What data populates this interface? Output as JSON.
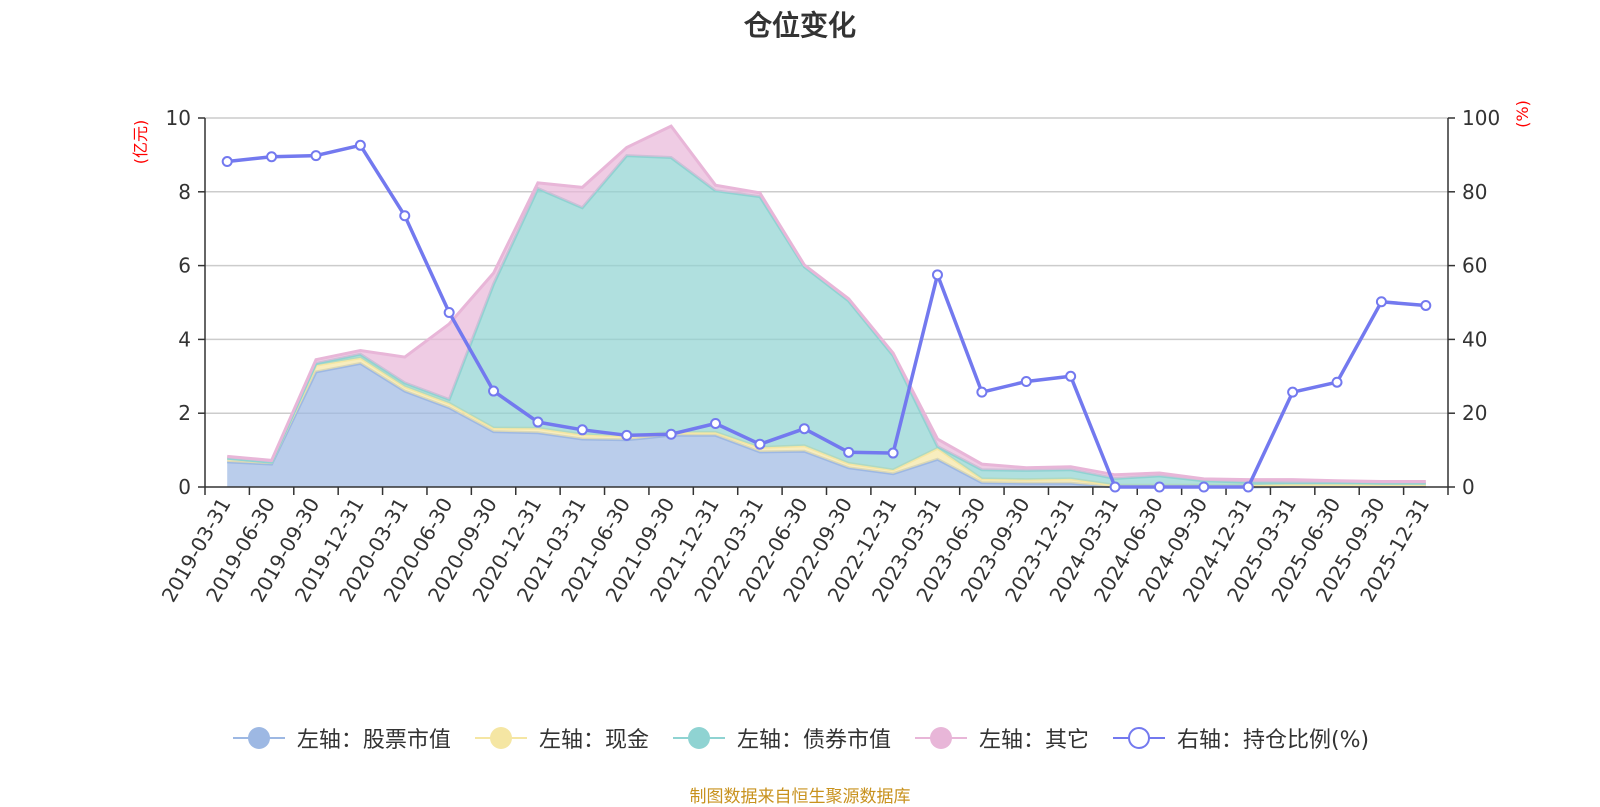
{
  "chart_data": {
    "type": "area",
    "title": "仓位变化",
    "source": "制图数据来自恒生聚源数据库",
    "left_axis": {
      "unit": "(亿元)",
      "ylim": [
        0,
        10
      ],
      "ticks": [
        "0",
        "2",
        "4",
        "6",
        "8",
        "10"
      ]
    },
    "right_axis": {
      "unit": "(%)",
      "ylim": [
        0,
        100
      ],
      "ticks": [
        "0",
        "20",
        "40",
        "60",
        "80",
        "100"
      ]
    },
    "categories": [
      "2019-03-31",
      "2019-06-30",
      "2019-09-30",
      "2019-12-31",
      "2020-03-31",
      "2020-06-30",
      "2020-09-30",
      "2020-12-31",
      "2021-03-31",
      "2021-06-30",
      "2021-09-30",
      "2021-12-31",
      "2022-03-31",
      "2022-06-30",
      "2022-09-30",
      "2022-12-31",
      "2023-03-31",
      "2023-06-30",
      "2023-09-30",
      "2023-12-31",
      "2024-03-31",
      "2024-06-30",
      "2024-09-30",
      "2024-12-31",
      "2025-03-31",
      "2025-06-30",
      "2025-09-30",
      "2025-12-31"
    ],
    "series": [
      {
        "name": "左轴：股票市值",
        "axis": "left",
        "kind": "stack",
        "color": "#9db8e3",
        "values": [
          0.68,
          0.62,
          3.12,
          3.35,
          2.6,
          2.15,
          1.5,
          1.47,
          1.3,
          1.28,
          1.4,
          1.4,
          0.95,
          0.97,
          0.52,
          0.36,
          0.75,
          0.12,
          0.1,
          0.1,
          0.0,
          0.0,
          0.0,
          0.0,
          0.02,
          0.02,
          0.02,
          0.02
        ]
      },
      {
        "name": "左轴：现金",
        "axis": "left",
        "kind": "stack",
        "color": "#f5e6a3",
        "values": [
          0.1,
          0.05,
          0.18,
          0.15,
          0.12,
          0.12,
          0.1,
          0.12,
          0.12,
          0.1,
          0.08,
          0.08,
          0.12,
          0.15,
          0.12,
          0.1,
          0.3,
          0.1,
          0.1,
          0.12,
          0.05,
          0.05,
          0.05,
          0.05,
          0.05,
          0.05,
          0.05,
          0.05
        ]
      },
      {
        "name": "左轴：债券市值",
        "axis": "left",
        "kind": "stack",
        "color": "#8fd3d2",
        "values": [
          0.0,
          0.0,
          0.05,
          0.1,
          0.1,
          0.1,
          3.9,
          6.5,
          6.15,
          7.6,
          7.45,
          6.55,
          6.8,
          4.85,
          4.4,
          3.1,
          0.05,
          0.25,
          0.25,
          0.25,
          0.18,
          0.25,
          0.12,
          0.08,
          0.05,
          0.05,
          0.03,
          0.03
        ]
      },
      {
        "name": "左轴：其它",
        "axis": "left",
        "kind": "stack",
        "color": "#e8b6d8",
        "values": [
          0.05,
          0.05,
          0.1,
          0.1,
          0.7,
          2.05,
          0.3,
          0.15,
          0.55,
          0.22,
          0.85,
          0.15,
          0.1,
          0.05,
          0.06,
          0.07,
          0.2,
          0.15,
          0.07,
          0.08,
          0.1,
          0.08,
          0.05,
          0.07,
          0.08,
          0.05,
          0.05,
          0.05
        ]
      },
      {
        "name": "右轴：持仓比例(%)",
        "axis": "right",
        "kind": "line",
        "color": "#7379ef",
        "values": [
          88.2,
          89.5,
          89.8,
          92.6,
          73.5,
          47.3,
          26.0,
          17.6,
          15.5,
          14.0,
          14.3,
          17.2,
          11.6,
          15.8,
          9.4,
          9.2,
          57.5,
          25.7,
          28.6,
          30.0,
          0.0,
          0.0,
          0.0,
          0.0,
          25.7,
          28.4,
          50.2,
          49.2
        ]
      }
    ]
  }
}
